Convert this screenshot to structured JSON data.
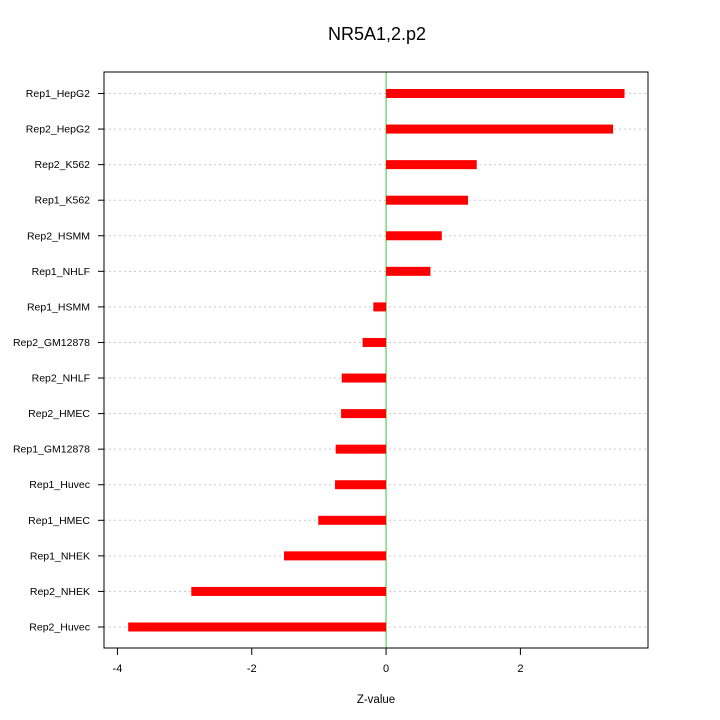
{
  "chart_data": {
    "type": "bar",
    "orientation": "horizontal",
    "title": "NR5A1,2.p2",
    "xlabel": "Z-value",
    "ylabel": "",
    "xlim": [
      -4.2,
      3.9
    ],
    "xticks": [
      -4,
      -2,
      0,
      2
    ],
    "grid": true,
    "zero_line_color": "#33cc33",
    "bar_color": "#ff0000",
    "categories": [
      "Rep1_HepG2",
      "Rep2_HepG2",
      "Rep2_K562",
      "Rep1_K562",
      "Rep2_HSMM",
      "Rep1_NHLF",
      "Rep1_HSMM",
      "Rep2_GM12878",
      "Rep2_NHLF",
      "Rep2_HMEC",
      "Rep1_GM12878",
      "Rep1_Huvec",
      "Rep1_HMEC",
      "Rep1_NHEK",
      "Rep2_NHEK",
      "Rep2_Huvec"
    ],
    "values": [
      3.55,
      3.38,
      1.35,
      1.22,
      0.83,
      0.66,
      -0.19,
      -0.35,
      -0.66,
      -0.67,
      -0.75,
      -0.76,
      -1.01,
      -1.52,
      -2.9,
      -3.84
    ]
  }
}
